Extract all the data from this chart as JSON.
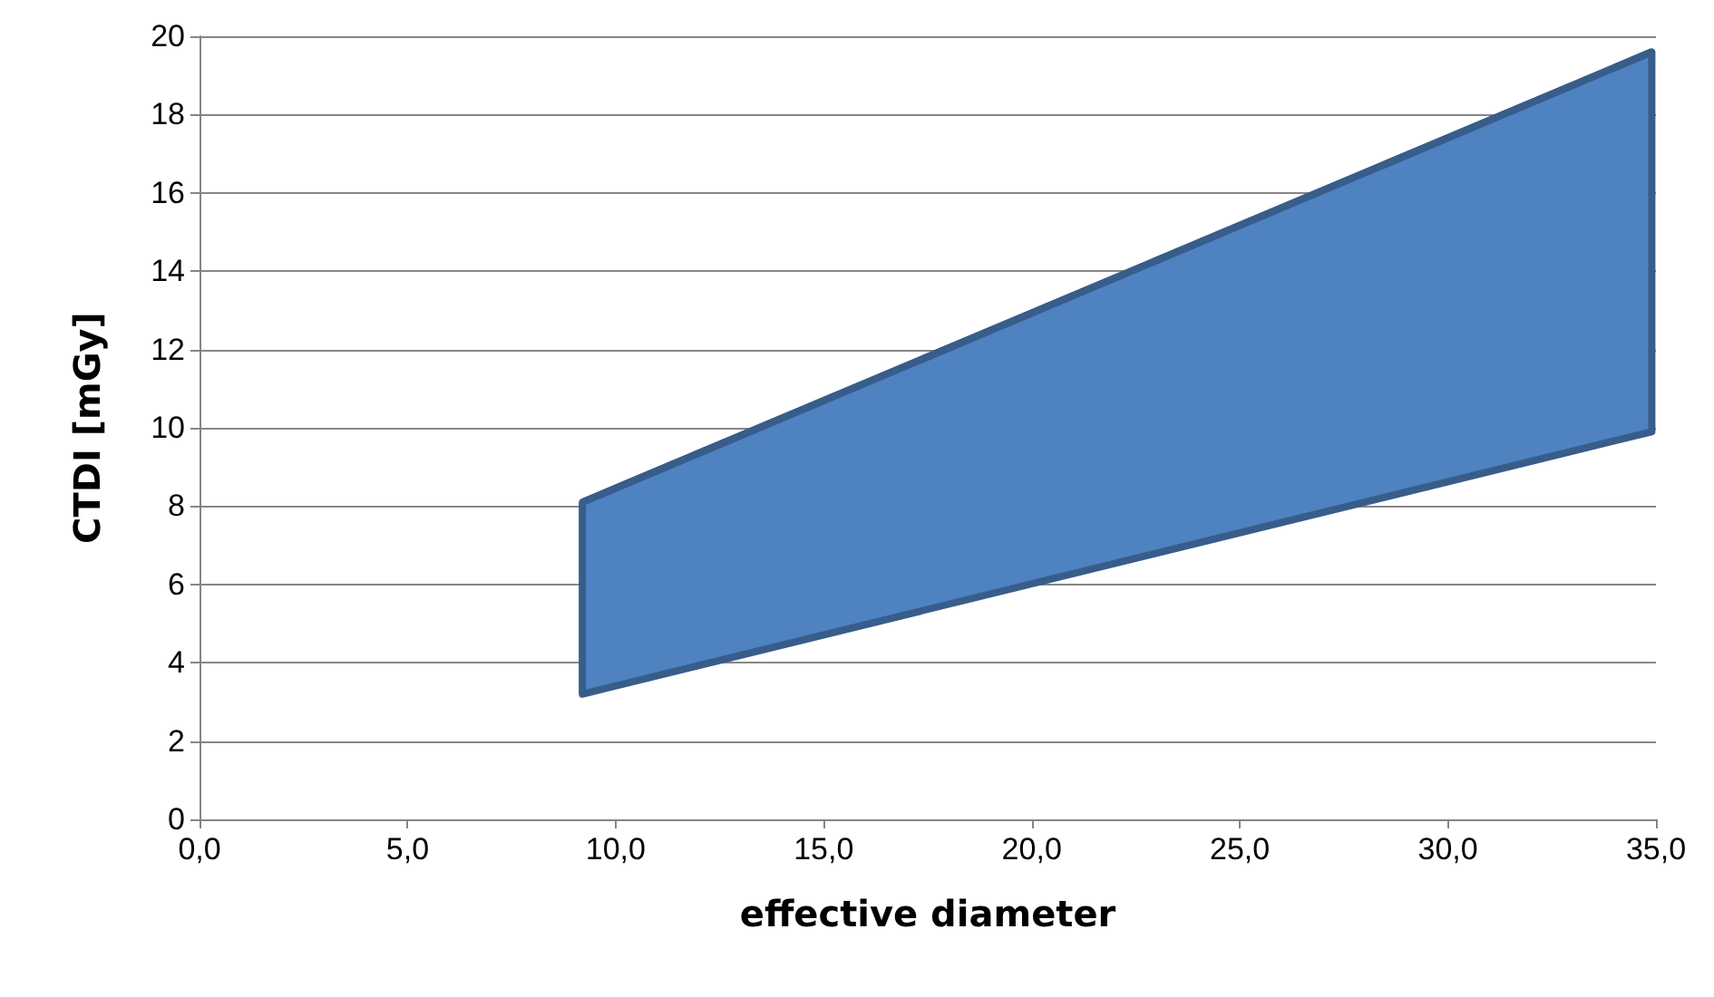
{
  "chart_data": {
    "type": "line",
    "xlabel": "effective diameter",
    "ylabel": "CTDI [mGy]",
    "series": [
      {
        "color": "#385d8a",
        "x": [
          9.2,
          34.9
        ],
        "values": [
          8.1,
          19.6
        ],
        "lower": [
          3.2,
          9.9
        ],
        "upper": [
          8.1,
          19.6
        ]
      }
    ],
    "xlim": [
      0,
      35
    ],
    "xticks": [
      {
        "value": 0,
        "label": "0,0"
      },
      {
        "value": 5,
        "label": "5,0"
      },
      {
        "value": 10,
        "label": "10,0"
      },
      {
        "value": 15,
        "label": "15,0"
      },
      {
        "value": 20,
        "label": "20,0"
      },
      {
        "value": 25,
        "label": "25,0"
      },
      {
        "value": 30,
        "label": "30,0"
      },
      {
        "value": 35,
        "label": "35,0"
      }
    ],
    "ylim": [
      0,
      20
    ],
    "yticks": [
      0,
      2,
      4,
      6,
      8,
      10,
      12,
      14,
      16,
      18,
      20
    ],
    "grid": "y"
  }
}
